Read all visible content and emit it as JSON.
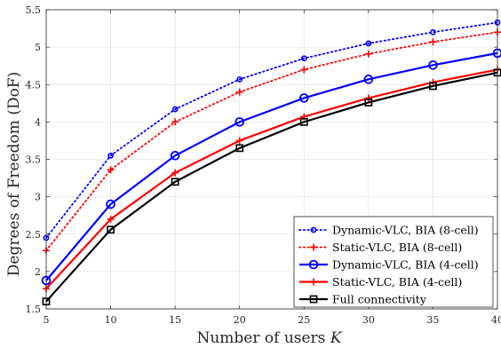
{
  "chart_data": {
    "type": "line",
    "x": [
      5,
      10,
      15,
      20,
      25,
      30,
      35,
      40
    ],
    "xlabel": "Number of users ",
    "xlabel_var": "K",
    "ylabel": "Degrees of Freedom (DoF)",
    "xlim": [
      5,
      40
    ],
    "ylim": [
      1.5,
      5.5
    ],
    "xticks": [
      "5",
      "10",
      "15",
      "20",
      "25",
      "30",
      "35",
      "40"
    ],
    "yticks": [
      "1.5",
      "2",
      "2.5",
      "3",
      "3.5",
      "4",
      "4.5",
      "5",
      "5.5"
    ],
    "grid": true,
    "legend_position": "bottom-right",
    "series": [
      {
        "name": "Dynamic-VLC, BIA (8-cell)",
        "color": "#0000ff",
        "style": "dotted",
        "marker": "circle-small",
        "values": [
          2.45,
          3.55,
          4.17,
          4.57,
          4.85,
          5.05,
          5.2,
          5.33
        ]
      },
      {
        "name": "Static-VLC, BIA (8-cell)",
        "color": "#ff0000",
        "style": "dotted",
        "marker": "plus",
        "values": [
          2.28,
          3.36,
          4.0,
          4.4,
          4.7,
          4.91,
          5.07,
          5.2
        ]
      },
      {
        "name": "Dynamic-VLC, BIA (4-cell)",
        "color": "#0000ff",
        "style": "solid",
        "marker": "circle",
        "values": [
          1.88,
          2.9,
          3.55,
          4.0,
          4.32,
          4.57,
          4.76,
          4.92
        ]
      },
      {
        "name": "Static-VLC, BIA (4-cell)",
        "color": "#ff0000",
        "style": "solid",
        "marker": "plus",
        "values": [
          1.77,
          2.7,
          3.32,
          3.75,
          4.07,
          4.32,
          4.53,
          4.7
        ]
      },
      {
        "name": "Full connectivity",
        "color": "#000000",
        "style": "solid",
        "marker": "square",
        "values": [
          1.6,
          2.56,
          3.2,
          3.65,
          4.0,
          4.26,
          4.48,
          4.66
        ]
      }
    ]
  }
}
